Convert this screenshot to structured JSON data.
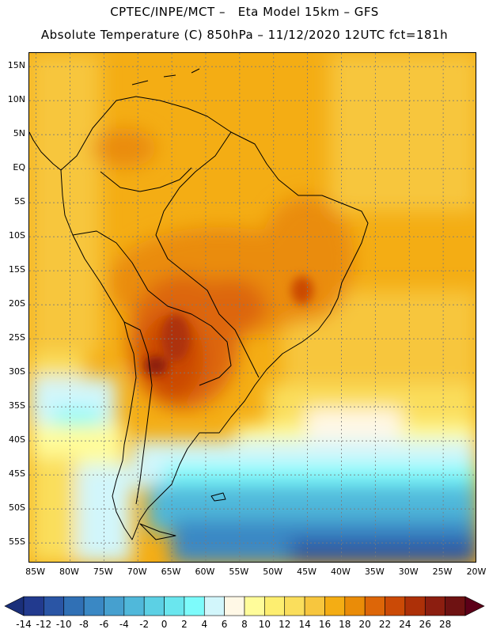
{
  "header": {
    "line1": "CPTEC/INPE/MCT –   Eta Model 15km – GFS",
    "line2": "Absolute Temperature (C) 850hPa – 11/12/2020 12UTC fct=181h"
  },
  "map": {
    "lon_range": [
      -86,
      -20
    ],
    "lat_range": [
      -58,
      17
    ],
    "lat_ticks": [
      {
        "value": 15,
        "label": "15N"
      },
      {
        "value": 10,
        "label": "10N"
      },
      {
        "value": 5,
        "label": "5N"
      },
      {
        "value": 0,
        "label": "EQ"
      },
      {
        "value": -5,
        "label": "5S"
      },
      {
        "value": -10,
        "label": "10S"
      },
      {
        "value": -15,
        "label": "15S"
      },
      {
        "value": -20,
        "label": "20S"
      },
      {
        "value": -25,
        "label": "25S"
      },
      {
        "value": -30,
        "label": "30S"
      },
      {
        "value": -35,
        "label": "35S"
      },
      {
        "value": -40,
        "label": "40S"
      },
      {
        "value": -45,
        "label": "45S"
      },
      {
        "value": -50,
        "label": "50S"
      },
      {
        "value": -55,
        "label": "55S"
      }
    ],
    "lon_ticks": [
      {
        "value": -85,
        "label": "85W"
      },
      {
        "value": -80,
        "label": "80W"
      },
      {
        "value": -75,
        "label": "75W"
      },
      {
        "value": -70,
        "label": "70W"
      },
      {
        "value": -65,
        "label": "65W"
      },
      {
        "value": -60,
        "label": "60W"
      },
      {
        "value": -55,
        "label": "55W"
      },
      {
        "value": -50,
        "label": "50W"
      },
      {
        "value": -45,
        "label": "45W"
      },
      {
        "value": -40,
        "label": "40W"
      },
      {
        "value": -35,
        "label": "35W"
      },
      {
        "value": -30,
        "label": "30W"
      },
      {
        "value": -25,
        "label": "25W"
      },
      {
        "value": -20,
        "label": "20W"
      }
    ]
  },
  "colorbar": {
    "labels": [
      "-14",
      "-12",
      "-10",
      "-8",
      "-6",
      "-4",
      "-2",
      "0",
      "2",
      "4",
      "6",
      "8",
      "10",
      "12",
      "14",
      "16",
      "18",
      "20",
      "22",
      "24",
      "26",
      "28"
    ],
    "low_color": "#1a2f7a",
    "high_color": "#5c0018",
    "colors": [
      "#223a8e",
      "#2a55a5",
      "#3070b5",
      "#3a88c4",
      "#46a0cf",
      "#50b8da",
      "#5cd0e4",
      "#6ae6ee",
      "#7dfbfb",
      "#d2f6fb",
      "#fff8e6",
      "#fffc9a",
      "#fdee70",
      "#fade5c",
      "#f7c63e",
      "#f4ad14",
      "#ea8c08",
      "#dd6608",
      "#cb4a06",
      "#ad3008",
      "#8c1e10",
      "#6e1212"
    ]
  }
}
